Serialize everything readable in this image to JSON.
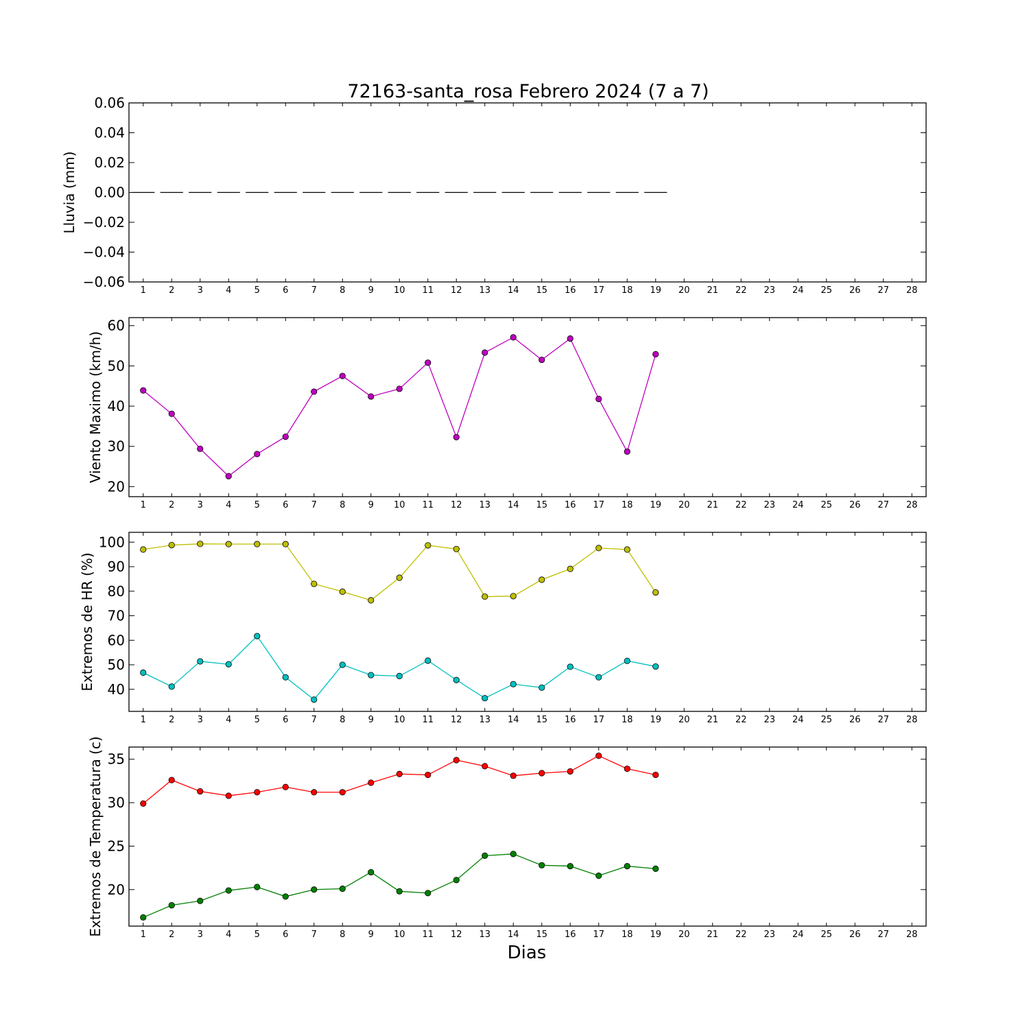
{
  "figure": {
    "title": "72163-santa_rosa Febrero 2024  (7 a 7)",
    "xlabel": "Dias"
  },
  "chart_data": [
    {
      "type": "bar",
      "ylabel": "Lluvia (mm)",
      "xlim": [
        0.5,
        28.5
      ],
      "ylim": [
        -0.06,
        0.06
      ],
      "yticks": [
        -0.06,
        -0.04,
        -0.02,
        0.0,
        0.02,
        0.04,
        0.06
      ],
      "ytick_labels": [
        "−0.06",
        "−0.04",
        "−0.02",
        "0.00",
        "0.02",
        "0.04",
        "0.06"
      ],
      "xticks": [
        1,
        2,
        3,
        4,
        5,
        6,
        7,
        8,
        9,
        10,
        11,
        12,
        13,
        14,
        15,
        16,
        17,
        18,
        19,
        20,
        21,
        22,
        23,
        24,
        25,
        26,
        27,
        28
      ],
      "x": [
        1,
        2,
        3,
        4,
        5,
        6,
        7,
        8,
        9,
        10,
        11,
        12,
        13,
        14,
        15,
        16,
        17,
        18,
        19
      ],
      "series": [
        {
          "color": "#000000",
          "values": [
            0,
            0,
            0,
            0,
            0,
            0,
            0,
            0,
            0,
            0,
            0,
            0,
            0,
            0,
            0,
            0,
            0,
            0,
            0
          ]
        }
      ]
    },
    {
      "type": "line",
      "ylabel": "Viento Maximo (km/h)",
      "xlim": [
        0.5,
        28.5
      ],
      "ylim": [
        17.5,
        62
      ],
      "yticks": [
        20,
        30,
        40,
        50,
        60
      ],
      "ytick_labels": [
        "20",
        "30",
        "40",
        "50",
        "60"
      ],
      "xticks": [
        1,
        2,
        3,
        4,
        5,
        6,
        7,
        8,
        9,
        10,
        11,
        12,
        13,
        14,
        15,
        16,
        17,
        18,
        19,
        20,
        21,
        22,
        23,
        24,
        25,
        26,
        27,
        28
      ],
      "x": [
        1,
        2,
        3,
        4,
        5,
        6,
        7,
        8,
        9,
        10,
        11,
        12,
        13,
        14,
        15,
        16,
        17,
        18,
        19
      ],
      "series": [
        {
          "color": "#bf00bf",
          "values": [
            43.9,
            38.1,
            29.4,
            22.6,
            28.1,
            32.4,
            43.6,
            47.5,
            42.4,
            44.3,
            50.8,
            32.3,
            53.3,
            57.1,
            51.5,
            56.8,
            41.8,
            28.7,
            52.9
          ]
        }
      ]
    },
    {
      "type": "line",
      "ylabel": "Extremos de HR (%)",
      "xlim": [
        0.5,
        28.5
      ],
      "ylim": [
        31,
        104
      ],
      "yticks": [
        40,
        50,
        60,
        70,
        80,
        90,
        100
      ],
      "ytick_labels": [
        "40",
        "50",
        "60",
        "70",
        "80",
        "90",
        "100"
      ],
      "xticks": [
        1,
        2,
        3,
        4,
        5,
        6,
        7,
        8,
        9,
        10,
        11,
        12,
        13,
        14,
        15,
        16,
        17,
        18,
        19,
        20,
        21,
        22,
        23,
        24,
        25,
        26,
        27,
        28
      ],
      "x": [
        1,
        2,
        3,
        4,
        5,
        6,
        7,
        8,
        9,
        10,
        11,
        12,
        13,
        14,
        15,
        16,
        17,
        18,
        19
      ],
      "series": [
        {
          "color": "#bfbf00",
          "values": [
            97,
            98.8,
            99.3,
            99.2,
            99.2,
            99.2,
            83,
            79.8,
            76.3,
            85.5,
            98.7,
            97.2,
            77.8,
            78,
            84.7,
            89.1,
            97.6,
            97,
            79.5
          ]
        },
        {
          "color": "#00bfbf",
          "values": [
            46.8,
            41.1,
            51.4,
            50.2,
            61.7,
            44.9,
            35.8,
            50,
            45.8,
            45.4,
            51.7,
            43.8,
            36.4,
            42.1,
            40.7,
            49.2,
            44.9,
            51.6,
            49.3
          ]
        }
      ]
    },
    {
      "type": "line",
      "ylabel": "Extremos de Temperatura (c)",
      "xlim": [
        0.5,
        28.5
      ],
      "ylim": [
        15.8,
        36.4
      ],
      "yticks": [
        20,
        25,
        30,
        35
      ],
      "ytick_labels": [
        "20",
        "25",
        "30",
        "35"
      ],
      "xticks": [
        1,
        2,
        3,
        4,
        5,
        6,
        7,
        8,
        9,
        10,
        11,
        12,
        13,
        14,
        15,
        16,
        17,
        18,
        19,
        20,
        21,
        22,
        23,
        24,
        25,
        26,
        27,
        28
      ],
      "x": [
        1,
        2,
        3,
        4,
        5,
        6,
        7,
        8,
        9,
        10,
        11,
        12,
        13,
        14,
        15,
        16,
        17,
        18,
        19
      ],
      "series": [
        {
          "color": "#ff0000",
          "values": [
            29.9,
            32.6,
            31.3,
            30.8,
            31.2,
            31.8,
            31.2,
            31.2,
            32.3,
            33.3,
            33.2,
            34.9,
            34.2,
            33.1,
            33.4,
            33.6,
            35.4,
            33.9,
            33.2
          ]
        },
        {
          "color": "#008000",
          "values": [
            16.8,
            18.2,
            18.7,
            19.9,
            20.3,
            19.2,
            20,
            20.1,
            22,
            19.8,
            19.6,
            21.1,
            23.9,
            24.1,
            22.8,
            22.7,
            21.6,
            22.7,
            22.4
          ]
        }
      ]
    }
  ]
}
